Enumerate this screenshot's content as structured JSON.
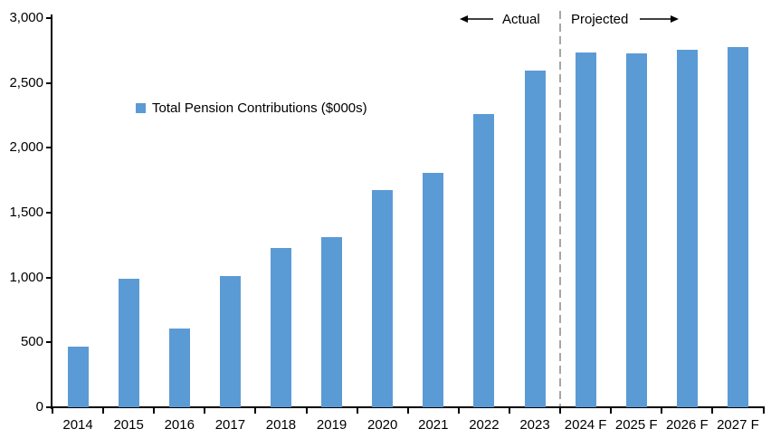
{
  "chart_data": {
    "type": "bar",
    "title": "",
    "legend": "Total Pension Contributions ($000s)",
    "categories": [
      "2014",
      "2015",
      "2016",
      "2017",
      "2018",
      "2019",
      "2020",
      "2021",
      "2022",
      "2023",
      "2024 F",
      "2025 F",
      "2026 F",
      "2027 F"
    ],
    "values": [
      470,
      990,
      610,
      1015,
      1230,
      1315,
      1675,
      1805,
      2260,
      2595,
      2735,
      2725,
      2755,
      2780
    ],
    "ylim": [
      0,
      3000
    ],
    "yticks": [
      0,
      500,
      1000,
      1500,
      2000,
      2500,
      3000
    ],
    "ytick_labels": [
      "0",
      "500",
      "1,000",
      "1,500",
      "2,000",
      "2,500",
      "3,000"
    ],
    "grid": false,
    "legend_position": "inside-top-left",
    "bar_color": "#5B9BD5",
    "axis_color": "#000000",
    "divider_color": "#A6A6A6",
    "annotations": {
      "actual": "Actual",
      "projected": "Projected",
      "divider_after_category": "2023"
    }
  }
}
